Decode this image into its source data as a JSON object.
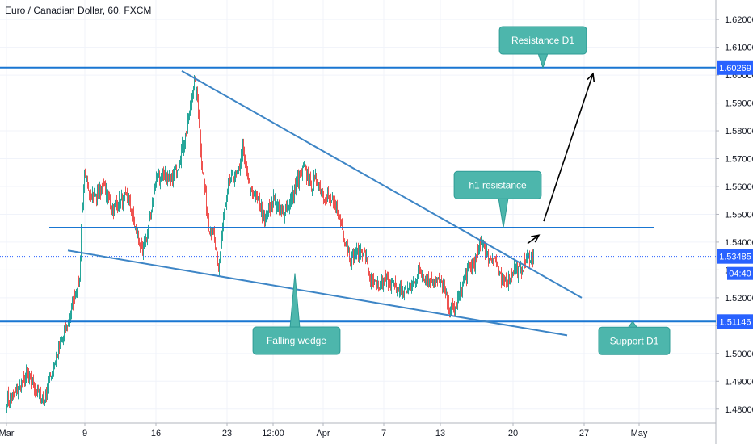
{
  "chart_data": {
    "type": "candlestick",
    "title": "Euro / Canadian Dollar, 60, FXCM",
    "y_axis": {
      "range": [
        1.475,
        1.627
      ],
      "ticks": [
        "1.48000",
        "1.49000",
        "1.50000",
        "1.51000",
        "1.52000",
        "1.53000",
        "1.54000",
        "1.55000",
        "1.56000",
        "1.57000",
        "1.58000",
        "1.59000",
        "1.60000",
        "1.61000",
        "1.62000"
      ]
    },
    "x_axis": {
      "ticks": [
        {
          "label": "Mar",
          "i": 0
        },
        {
          "label": "9",
          "i": 97
        },
        {
          "label": "16",
          "i": 185
        },
        {
          "label": "23",
          "i": 273
        },
        {
          "label": "12:00",
          "i": 330
        },
        {
          "label": "Apr",
          "i": 392
        },
        {
          "label": "7",
          "i": 467
        },
        {
          "label": "13",
          "i": 537
        },
        {
          "label": "20",
          "i": 627
        },
        {
          "label": "27",
          "i": 715
        },
        {
          "label": "May",
          "i": 783
        }
      ]
    },
    "price_badges": [
      {
        "label": "1.60269",
        "value": 1.60269,
        "color": "#2962ff"
      },
      {
        "label": "1.53485",
        "value": 1.53485,
        "color": "#2962ff"
      },
      {
        "label": "1.51146",
        "value": 1.51146,
        "color": "#2962ff"
      }
    ],
    "countdown": "04:40",
    "horizontal_levels": [
      {
        "name": "Resistance D1",
        "value": 1.60269,
        "from_i": -10,
        "to_i": 880
      },
      {
        "name": "h1 resistance",
        "value": 1.5452,
        "from_i": 53,
        "to_i": 802
      },
      {
        "name": "Support D1",
        "value": 1.51146,
        "from_i": -10,
        "to_i": 880
      }
    ],
    "current_price_line": 1.53485,
    "trendlines": [
      {
        "name": "Falling wedge upper",
        "from": [
          217,
          1.6015
        ],
        "to": [
          712,
          1.52
        ]
      },
      {
        "name": "Falling wedge lower",
        "from": [
          76,
          1.537
        ],
        "to": [
          694,
          1.5065
        ]
      }
    ],
    "arrows": [
      {
        "from": [
          645,
          1.5395
        ],
        "to": [
          659,
          1.5425
        ]
      },
      {
        "from": [
          665,
          1.5475
        ],
        "to": [
          726,
          1.6005
        ]
      }
    ],
    "callouts": [
      {
        "text": "Resistance D1",
        "at": [
          664,
          1.6125
        ],
        "pointer": [
          664,
          1.6027
        ]
      },
      {
        "text": "h1 resistance",
        "at": [
          608,
          1.5605
        ],
        "pointer": [
          615,
          1.5452
        ]
      },
      {
        "text": "Falling wedge",
        "at": [
          359,
          1.5046
        ],
        "pointer": [
          357,
          1.5288
        ]
      },
      {
        "text": "Support D1",
        "at": [
          777,
          1.5045
        ],
        "pointer": [
          775,
          1.5115
        ]
      }
    ],
    "waypoints": [
      [
        0,
        1.483
      ],
      [
        12,
        1.486
      ],
      [
        24,
        1.492
      ],
      [
        36,
        1.487
      ],
      [
        46,
        1.4825
      ],
      [
        54,
        1.492
      ],
      [
        66,
        1.503
      ],
      [
        78,
        1.513
      ],
      [
        84,
        1.522
      ],
      [
        90,
        1.5265
      ],
      [
        92,
        1.5465
      ],
      [
        96,
        1.562
      ],
      [
        110,
        1.556
      ],
      [
        120,
        1.561
      ],
      [
        130,
        1.552
      ],
      [
        140,
        1.5545
      ],
      [
        150,
        1.556
      ],
      [
        160,
        1.544
      ],
      [
        168,
        1.536
      ],
      [
        176,
        1.5465
      ],
      [
        185,
        1.563
      ],
      [
        194,
        1.565
      ],
      [
        203,
        1.5615
      ],
      [
        212,
        1.568
      ],
      [
        222,
        1.579
      ],
      [
        232,
        1.598
      ],
      [
        236,
        1.5905
      ],
      [
        242,
        1.566
      ],
      [
        250,
        1.5465
      ],
      [
        256,
        1.5425
      ],
      [
        262,
        1.529
      ],
      [
        268,
        1.5485
      ],
      [
        276,
        1.5625
      ],
      [
        286,
        1.5645
      ],
      [
        292,
        1.5735
      ],
      [
        300,
        1.5595
      ],
      [
        310,
        1.5555
      ],
      [
        320,
        1.5485
      ],
      [
        330,
        1.5555
      ],
      [
        340,
        1.5505
      ],
      [
        350,
        1.5535
      ],
      [
        360,
        1.5625
      ],
      [
        368,
        1.5665
      ],
      [
        376,
        1.5605
      ],
      [
        384,
        1.5625
      ],
      [
        392,
        1.5565
      ],
      [
        400,
        1.5555
      ],
      [
        410,
        1.5505
      ],
      [
        418,
        1.5415
      ],
      [
        426,
        1.5345
      ],
      [
        434,
        1.5365
      ],
      [
        442,
        1.5375
      ],
      [
        450,
        1.5265
      ],
      [
        460,
        1.5235
      ],
      [
        470,
        1.5265
      ],
      [
        480,
        1.5235
      ],
      [
        490,
        1.5225
      ],
      [
        500,
        1.5235
      ],
      [
        510,
        1.5295
      ],
      [
        520,
        1.5265
      ],
      [
        530,
        1.5265
      ],
      [
        540,
        1.5245
      ],
      [
        548,
        1.5155
      ],
      [
        556,
        1.5165
      ],
      [
        564,
        1.5245
      ],
      [
        572,
        1.5305
      ],
      [
        580,
        1.5335
      ],
      [
        588,
        1.5405
      ],
      [
        596,
        1.5345
      ],
      [
        604,
        1.5345
      ],
      [
        612,
        1.5255
      ],
      [
        620,
        1.5265
      ],
      [
        628,
        1.5305
      ],
      [
        636,
        1.5295
      ],
      [
        644,
        1.5345
      ],
      [
        652,
        1.5349
      ]
    ]
  }
}
